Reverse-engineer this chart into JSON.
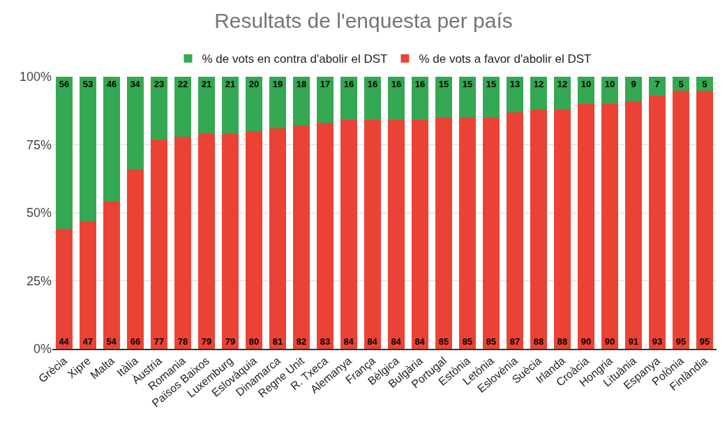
{
  "chart_data": {
    "type": "bar",
    "title": "Resultats de l'enquesta per país",
    "stacked": true,
    "data_labels": true,
    "grid": "y",
    "legend": "top",
    "categories": [
      "Grècia",
      "Xipre",
      "Malta",
      "Itàlia",
      "Àustria",
      "Romania",
      "Països Baixos",
      "Luxemburg",
      "Eslovàquia",
      "Dinamarca",
      "Regne Unit",
      "R. Txeca",
      "Alemanya",
      "França",
      "Bèlgica",
      "Bulgària",
      "Portugal",
      "Estònia",
      "Letònia",
      "Eslovènia",
      "Suècia",
      "Irlanda",
      "Croàcia",
      "Hongria",
      "Lituània",
      "Espanya",
      "Polònia",
      "Finlàndia"
    ],
    "ylim": [
      0,
      100
    ],
    "yticks": [
      {
        "value": 0,
        "label": "0%"
      },
      {
        "value": 25,
        "label": "25%"
      },
      {
        "value": 50,
        "label": "50%"
      },
      {
        "value": 75,
        "label": "75%"
      },
      {
        "value": 100,
        "label": "100%"
      }
    ],
    "series": [
      {
        "name": "% de vots a favor d'abolir el DST",
        "color": "#ea4335",
        "values": [
          44,
          47,
          54,
          66,
          77,
          78,
          79,
          79,
          80,
          81,
          82,
          83,
          84,
          84,
          84,
          84,
          85,
          85,
          85,
          87,
          88,
          88,
          90,
          90,
          91,
          93,
          95,
          95
        ]
      },
      {
        "name": "% de vots en contra d'abolir el DST",
        "color": "#34a853",
        "values": [
          56,
          53,
          46,
          34,
          23,
          22,
          21,
          21,
          20,
          19,
          18,
          17,
          16,
          16,
          16,
          16,
          15,
          15,
          15,
          13,
          12,
          12,
          10,
          10,
          9,
          7,
          5,
          5
        ]
      }
    ]
  }
}
